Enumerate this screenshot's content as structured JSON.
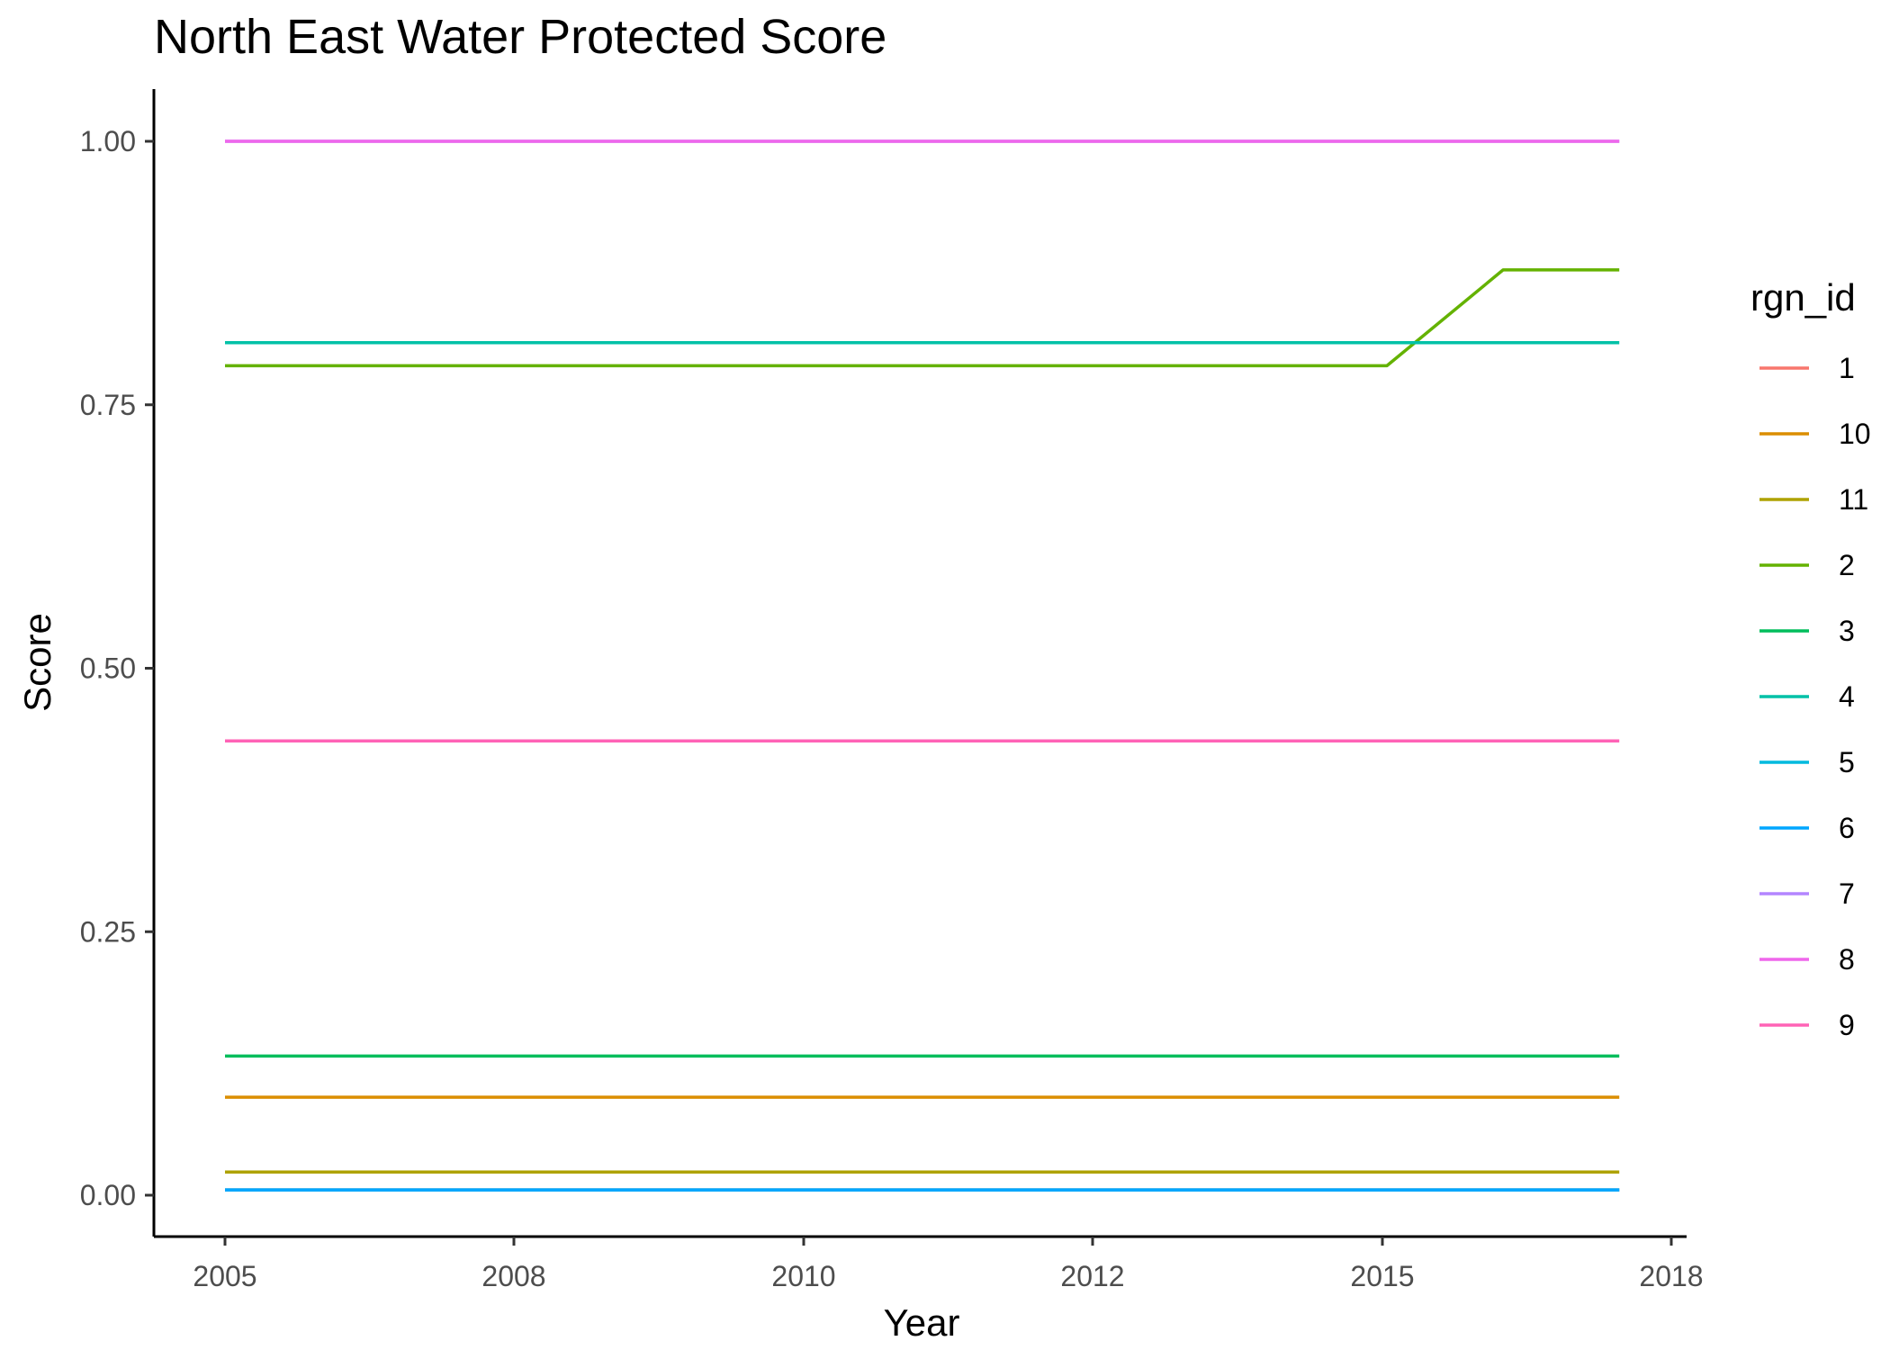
{
  "chart_data": {
    "type": "line",
    "title": "North East Water Protected Score",
    "xlabel": "Year",
    "ylabel": "Score",
    "x": [
      2005,
      2006,
      2007,
      2008,
      2009,
      2010,
      2011,
      2012,
      2013,
      2014,
      2015,
      2016,
      2017
    ],
    "x_tick_labels": [
      "2005",
      "2008",
      "2010",
      "2012",
      "2015",
      "2018"
    ],
    "y_ticks": [
      0.0,
      0.25,
      0.5,
      0.75,
      1.0
    ],
    "y_tick_labels": [
      "0.00",
      "0.25",
      "0.50",
      "0.75",
      "1.00"
    ],
    "ylim": [
      -0.043,
      1.049
    ],
    "grid": false,
    "legend_title": "rgn_id",
    "legend_position": "right",
    "series": [
      {
        "name": "1",
        "color": "#F8766D",
        "values": [
          0.005,
          0.005,
          0.005,
          0.005,
          0.005,
          0.005,
          0.005,
          0.005,
          0.005,
          0.005,
          0.005,
          0.005,
          0.005
        ]
      },
      {
        "name": "10",
        "color": "#DB8E00",
        "values": [
          0.093,
          0.093,
          0.093,
          0.093,
          0.093,
          0.093,
          0.093,
          0.093,
          0.093,
          0.093,
          0.093,
          0.093,
          0.093
        ]
      },
      {
        "name": "11",
        "color": "#AEA200",
        "values": [
          0.022,
          0.022,
          0.022,
          0.022,
          0.022,
          0.022,
          0.022,
          0.022,
          0.022,
          0.022,
          0.022,
          0.022,
          0.022
        ]
      },
      {
        "name": "2",
        "color": "#64B200",
        "values": [
          0.787,
          0.787,
          0.787,
          0.787,
          0.787,
          0.787,
          0.787,
          0.787,
          0.787,
          0.787,
          0.787,
          0.878,
          0.878
        ]
      },
      {
        "name": "3",
        "color": "#00BD5C",
        "values": [
          0.132,
          0.132,
          0.132,
          0.132,
          0.132,
          0.132,
          0.132,
          0.132,
          0.132,
          0.132,
          0.132,
          0.132,
          0.132
        ]
      },
      {
        "name": "4",
        "color": "#00C1A7",
        "values": [
          0.809,
          0.809,
          0.809,
          0.809,
          0.809,
          0.809,
          0.809,
          0.809,
          0.809,
          0.809,
          0.809,
          0.809,
          0.809
        ]
      },
      {
        "name": "5",
        "color": "#00BADE",
        "values": [
          0.005,
          0.005,
          0.005,
          0.005,
          0.005,
          0.005,
          0.005,
          0.005,
          0.005,
          0.005,
          0.005,
          0.005,
          0.005
        ]
      },
      {
        "name": "6",
        "color": "#00A6FF",
        "values": [
          0.005,
          0.005,
          0.005,
          0.005,
          0.005,
          0.005,
          0.005,
          0.005,
          0.005,
          0.005,
          0.005,
          0.005,
          0.005
        ]
      },
      {
        "name": "7",
        "color": "#B385FF",
        "values": [
          1.0,
          1.0,
          1.0,
          1.0,
          1.0,
          1.0,
          1.0,
          1.0,
          1.0,
          1.0,
          1.0,
          1.0,
          1.0
        ]
      },
      {
        "name": "8",
        "color": "#EF67EB",
        "values": [
          1.0,
          1.0,
          1.0,
          1.0,
          1.0,
          1.0,
          1.0,
          1.0,
          1.0,
          1.0,
          1.0,
          1.0,
          1.0
        ]
      },
      {
        "name": "9",
        "color": "#FF63B6",
        "values": [
          0.431,
          0.431,
          0.431,
          0.431,
          0.431,
          0.431,
          0.431,
          0.431,
          0.431,
          0.431,
          0.431,
          0.431,
          0.431
        ]
      }
    ]
  }
}
